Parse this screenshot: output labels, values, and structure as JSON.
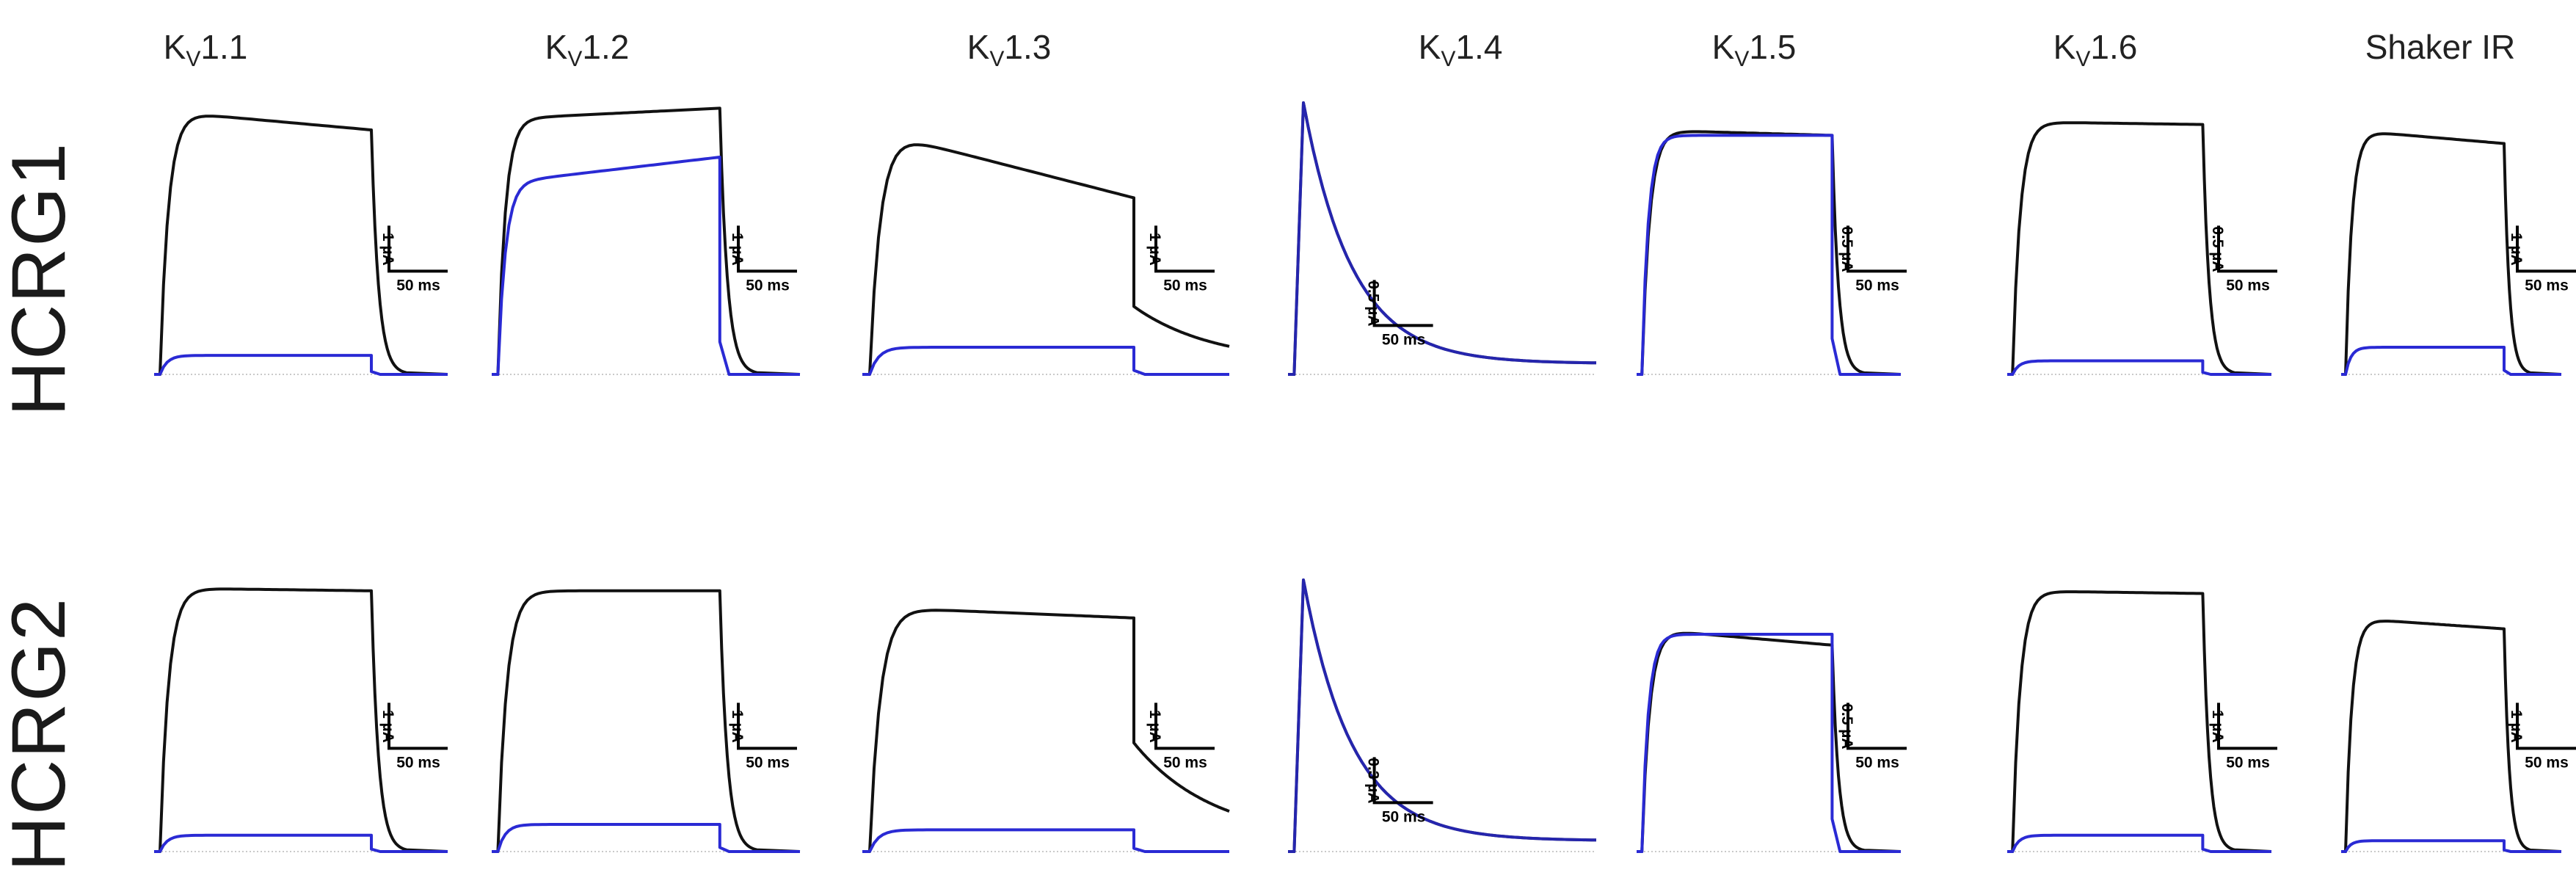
{
  "figure": {
    "columns": [
      {
        "prefix": "K",
        "sub": "V",
        "suffix": "1.1"
      },
      {
        "prefix": "K",
        "sub": "V",
        "suffix": "1.2"
      },
      {
        "prefix": "K",
        "sub": "V",
        "suffix": "1.3"
      },
      {
        "prefix": "K",
        "sub": "V",
        "suffix": "1.4"
      },
      {
        "prefix": "K",
        "sub": "V",
        "suffix": "1.5"
      },
      {
        "prefix": "K",
        "sub": "V",
        "suffix": "1.6"
      },
      {
        "prefix": "Shaker IR",
        "sub": "",
        "suffix": ""
      }
    ],
    "rows": [
      "HCRG1",
      "HCRG2"
    ]
  },
  "colors": {
    "control": "#111111",
    "toxin": "#2a2ad4"
  },
  "chart_data": {
    "type": "line",
    "panels": [
      {
        "row": 0,
        "col": 0,
        "shape": "step",
        "control_level": 0.97,
        "control_end": 0.9,
        "toxin_level": 0.07,
        "tail": 0.0,
        "scale_current": "1 µA",
        "scale_time": "50 ms"
      },
      {
        "row": 0,
        "col": 1,
        "shape": "slowrise",
        "control_level": 0.94,
        "control_end": 0.98,
        "toxin_level": 0.8,
        "tail": 0.0,
        "scale_current": "1 µA",
        "scale_time": "50 ms"
      },
      {
        "row": 0,
        "col": 2,
        "shape": "decay",
        "control_level": 0.9,
        "control_end": 0.65,
        "toxin_level": 0.1,
        "tail": 0.25,
        "scale_current": "1 µA",
        "scale_time": "50 ms"
      },
      {
        "row": 0,
        "col": 3,
        "shape": "peak",
        "control_level": 1.0,
        "control_end": 0.04,
        "toxin_level": 1.0,
        "tail": 0.0,
        "scale_current": "0.5 µA",
        "scale_time": "50 ms"
      },
      {
        "row": 0,
        "col": 4,
        "shape": "step",
        "control_level": 0.9,
        "control_end": 0.88,
        "toxin_level": 0.88,
        "tail": 0.0,
        "scale_current": "0.5 µA",
        "scale_time": "50 ms"
      },
      {
        "row": 0,
        "col": 5,
        "shape": "step",
        "control_level": 0.93,
        "control_end": 0.92,
        "toxin_level": 0.05,
        "tail": 0.0,
        "scale_current": "0.5 µA",
        "scale_time": "50 ms"
      },
      {
        "row": 0,
        "col": 6,
        "shape": "step",
        "control_level": 0.9,
        "control_end": 0.85,
        "toxin_level": 0.1,
        "tail": 0.0,
        "scale_current": "1 µA",
        "scale_time": "50 ms"
      },
      {
        "row": 1,
        "col": 0,
        "shape": "step",
        "control_level": 0.97,
        "control_end": 0.96,
        "toxin_level": 0.06,
        "tail": 0.0,
        "scale_current": "1 µA",
        "scale_time": "50 ms"
      },
      {
        "row": 1,
        "col": 1,
        "shape": "step",
        "control_level": 0.96,
        "control_end": 0.96,
        "toxin_level": 0.1,
        "tail": 0.0,
        "scale_current": "1 µA",
        "scale_time": "50 ms"
      },
      {
        "row": 1,
        "col": 2,
        "shape": "decay",
        "control_level": 0.9,
        "control_end": 0.86,
        "toxin_level": 0.08,
        "tail": 0.4,
        "scale_current": "1 µA",
        "scale_time": "50 ms"
      },
      {
        "row": 1,
        "col": 3,
        "shape": "peak",
        "control_level": 1.0,
        "control_end": 0.04,
        "toxin_level": 1.0,
        "tail": 0.0,
        "scale_current": "0.3 µA",
        "scale_time": "50 ms"
      },
      {
        "row": 1,
        "col": 4,
        "shape": "step",
        "control_level": 0.82,
        "control_end": 0.76,
        "toxin_level": 0.8,
        "tail": 0.0,
        "scale_current": "0.5 µA",
        "scale_time": "50 ms"
      },
      {
        "row": 1,
        "col": 5,
        "shape": "step",
        "control_level": 0.96,
        "control_end": 0.95,
        "toxin_level": 0.06,
        "tail": 0.0,
        "scale_current": "1 µA",
        "scale_time": "50 ms"
      },
      {
        "row": 1,
        "col": 6,
        "shape": "step",
        "control_level": 0.86,
        "control_end": 0.82,
        "toxin_level": 0.04,
        "tail": 0.0,
        "scale_current": "1 µA",
        "scale_time": "50 ms"
      }
    ]
  }
}
